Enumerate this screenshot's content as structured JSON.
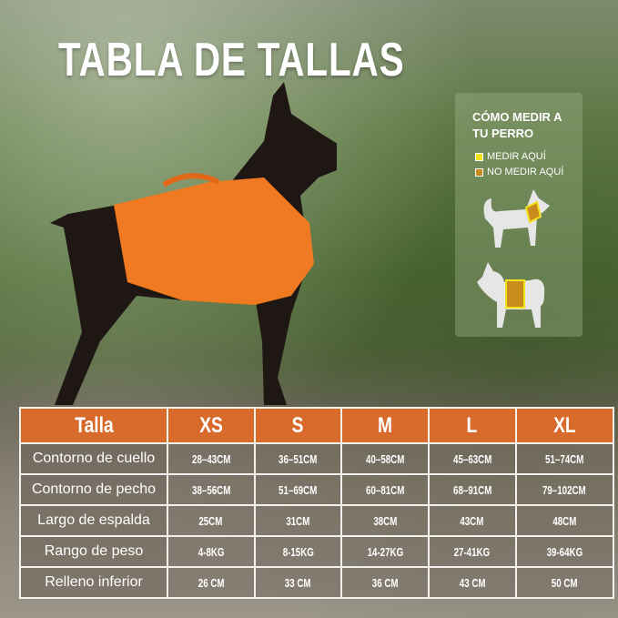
{
  "title": "TABLA DE TALLAS",
  "colors": {
    "header": "#d86a2c",
    "measure": "#f2e21a",
    "no_measure": "#c98a1e",
    "harness": "#f07a22"
  },
  "guide": {
    "title_line1": "CÓMO MEDIR A",
    "title_line2": "TU PERRO",
    "legend": [
      {
        "label": "MEDIR AQUÍ",
        "color": "#f2e21a"
      },
      {
        "label": "NO MEDIR AQUÍ",
        "color": "#c98a1e"
      }
    ],
    "icons": [
      "dog-neck-measure-icon",
      "dog-chest-measure-icon"
    ]
  },
  "table": {
    "headers": [
      "Talla",
      "XS",
      "S",
      "M",
      "L",
      "XL"
    ],
    "rows": [
      {
        "label": "Contorno de cuello",
        "values": [
          "28–43CM",
          "36–51CM",
          "40–58CM",
          "45–63CM",
          "51–74CM"
        ]
      },
      {
        "label": "Contorno de pecho",
        "values": [
          "38–56CM",
          "51–69CM",
          "60–81CM",
          "68–91CM",
          "79–102CM"
        ]
      },
      {
        "label": "Largo de espalda",
        "values": [
          "25CM",
          "31CM",
          "38CM",
          "43CM",
          "48CM"
        ]
      },
      {
        "label": "Rango de peso",
        "values": [
          "4-8KG",
          "8-15KG",
          "14-27KG",
          "27-41KG",
          "39-64KG"
        ]
      },
      {
        "label": "Relleno inferior",
        "values": [
          "26 CM",
          "33 CM",
          "36 CM",
          "43 CM",
          "50 CM"
        ]
      }
    ]
  }
}
